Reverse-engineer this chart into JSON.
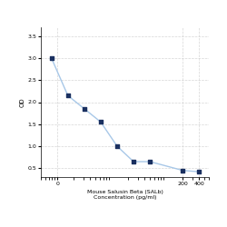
{
  "x": [
    0.78125,
    1.5625,
    3.125,
    6.25,
    12.5,
    25,
    50,
    200,
    400
  ],
  "y": [
    3.0,
    2.15,
    1.85,
    1.55,
    1.0,
    0.65,
    0.65,
    0.45,
    0.42
  ],
  "line_color": "#a8c8e8",
  "marker_color": "#1a3060",
  "marker_style": "s",
  "marker_size": 3.5,
  "line_width": 1.0,
  "ylabel": "OD",
  "xlabel_line1": "Mouse Salusin Beta (SALb)",
  "xlabel_line2": "Concentration (pg/ml)",
  "xlim_log": [
    0.5,
    600
  ],
  "ylim": [
    0.3,
    3.7
  ],
  "yticks": [
    0.5,
    1.0,
    1.5,
    2.0,
    2.5,
    3.0,
    3.5
  ],
  "xticks": [
    1,
    200,
    400
  ],
  "xticklabels": [
    "0",
    "200",
    "400"
  ],
  "grid_color": "#cccccc",
  "grid_style": "--",
  "grid_alpha": 0.8,
  "bg_color": "#ffffff",
  "ylabel_fontsize": 5,
  "xlabel_fontsize": 4.5,
  "tick_fontsize": 4.5
}
